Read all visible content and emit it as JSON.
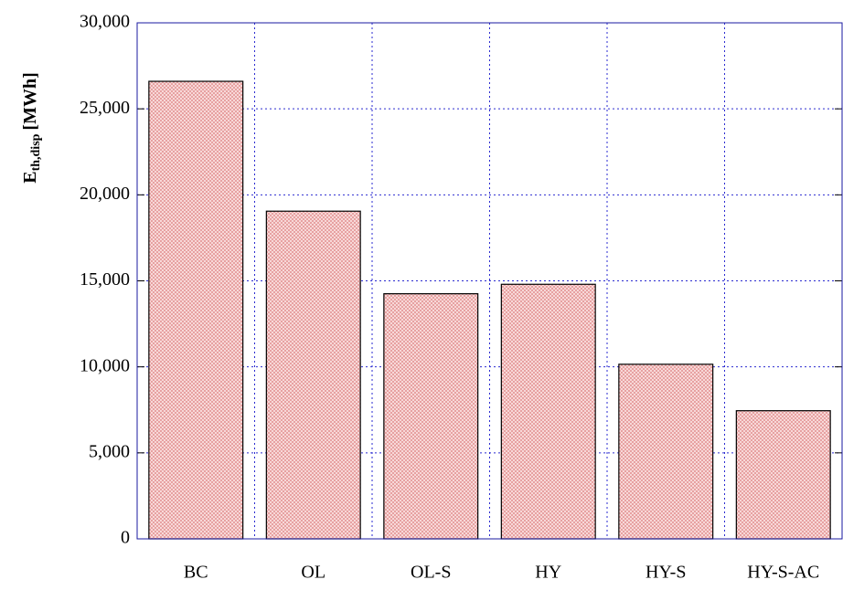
{
  "chart_data": {
    "type": "bar",
    "y_label": "E",
    "y_label_subscript": "th,disp",
    "y_label_unit": "[MWh]",
    "categories": [
      "BC",
      "OL",
      "OL-S",
      "HY",
      "HY-S",
      "HY-S-AC"
    ],
    "values": [
      26600,
      19050,
      14250,
      14800,
      10150,
      7450
    ],
    "color": "#f2b8b8",
    "ylim": [
      0,
      30000
    ],
    "yticks": [
      0,
      {
        "value": 5000,
        "label": "5,000"
      },
      {
        "value": 10000,
        "label": "10,000"
      },
      {
        "value": 15000,
        "label": "15,000"
      },
      {
        "value": 20000,
        "label": "20,000"
      },
      {
        "value": 25000,
        "label": "25,000"
      },
      {
        "value": 30000,
        "label": "30,000"
      }
    ],
    "grid": true
  }
}
